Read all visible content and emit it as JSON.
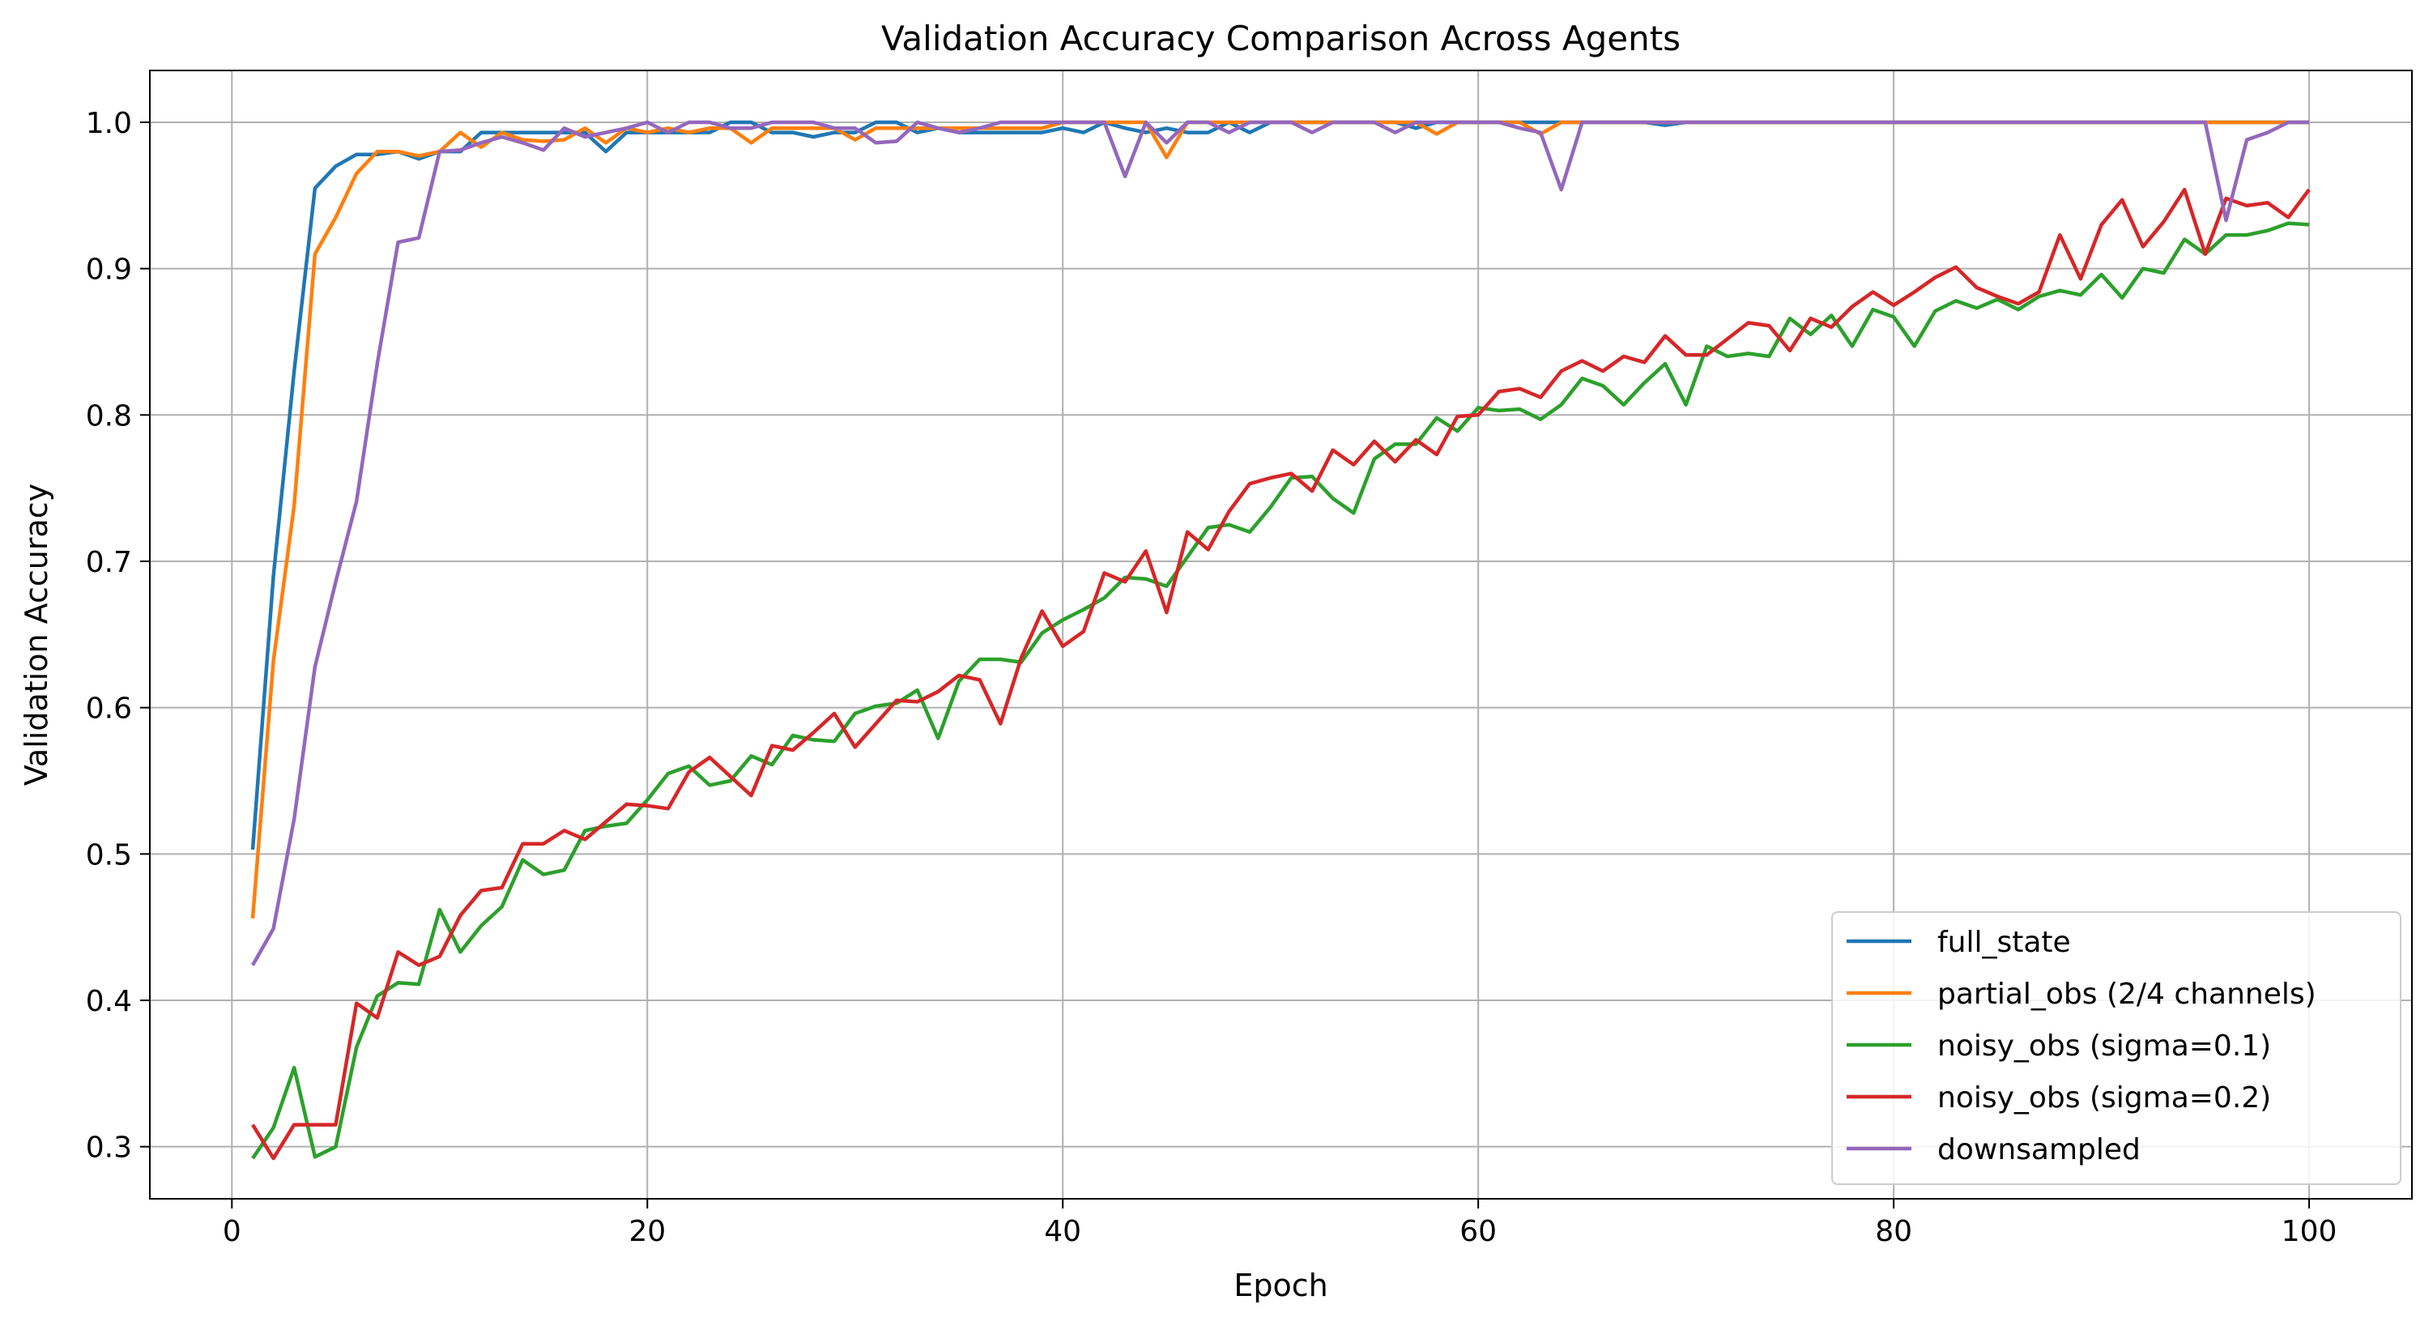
{
  "chart_data": {
    "type": "line",
    "title": "Validation Accuracy Comparison Across Agents",
    "xlabel": "Epoch",
    "ylabel": "Validation Accuracy",
    "xlim": [
      -3.95,
      104.95
    ],
    "ylim": [
      0.2644,
      1.0354
    ],
    "xticks": [
      0,
      20,
      40,
      60,
      80,
      100
    ],
    "xtick_labels": [
      "0",
      "20",
      "40",
      "60",
      "80",
      "100"
    ],
    "yticks": [
      0.3,
      0.4,
      0.5,
      0.6,
      0.7,
      0.8,
      0.9,
      1.0
    ],
    "ytick_labels": [
      "0.3",
      "0.4",
      "0.5",
      "0.6",
      "0.7",
      "0.8",
      "0.9",
      "1.0"
    ],
    "grid": true,
    "legend_position": "lower-right",
    "x": [
      1,
      2,
      3,
      4,
      5,
      6,
      7,
      8,
      9,
      10,
      11,
      12,
      13,
      14,
      15,
      16,
      17,
      18,
      19,
      20,
      21,
      22,
      23,
      24,
      25,
      26,
      27,
      28,
      29,
      30,
      31,
      32,
      33,
      34,
      35,
      36,
      37,
      38,
      39,
      40,
      41,
      42,
      43,
      44,
      45,
      46,
      47,
      48,
      49,
      50,
      51,
      52,
      53,
      54,
      55,
      56,
      57,
      58,
      59,
      60,
      61,
      62,
      63,
      64,
      65,
      66,
      67,
      68,
      69,
      70,
      71,
      72,
      73,
      74,
      75,
      76,
      77,
      78,
      79,
      80,
      81,
      82,
      83,
      84,
      85,
      86,
      87,
      88,
      89,
      90,
      91,
      92,
      93,
      94,
      95,
      96,
      97,
      98,
      99,
      100
    ],
    "series": [
      {
        "name": "full_state",
        "color": "#1f77b4",
        "values": [
          0.503,
          0.69,
          0.83,
          0.955,
          0.97,
          0.978,
          0.978,
          0.98,
          0.975,
          0.98,
          0.98,
          0.993,
          0.993,
          0.993,
          0.993,
          0.993,
          0.993,
          0.98,
          0.993,
          0.993,
          0.993,
          0.993,
          0.993,
          1.0,
          1.0,
          0.993,
          0.993,
          0.99,
          0.993,
          0.993,
          1.0,
          1.0,
          0.993,
          0.996,
          0.993,
          0.993,
          0.993,
          0.993,
          0.993,
          0.996,
          0.993,
          1.0,
          0.996,
          0.993,
          0.996,
          0.993,
          0.993,
          1.0,
          0.993,
          1.0,
          1.0,
          1.0,
          1.0,
          1.0,
          1.0,
          1.0,
          0.996,
          1.0,
          1.0,
          1.0,
          1.0,
          1.0,
          1.0,
          1.0,
          1.0,
          1.0,
          1.0,
          1.0,
          0.998,
          1.0,
          1.0,
          1.0,
          1.0,
          1.0,
          1.0,
          1.0,
          1.0,
          1.0,
          1.0,
          1.0,
          1.0,
          1.0,
          1.0,
          1.0,
          1.0,
          1.0,
          1.0,
          1.0,
          1.0,
          1.0,
          1.0,
          1.0,
          1.0,
          1.0,
          1.0,
          1.0,
          1.0,
          1.0,
          1.0,
          1.0
        ]
      },
      {
        "name": "partial_obs (2/4 channels)",
        "color": "#ff7f0e",
        "values": [
          0.456,
          0.632,
          0.738,
          0.91,
          0.935,
          0.965,
          0.98,
          0.98,
          0.977,
          0.98,
          0.993,
          0.983,
          0.993,
          0.988,
          0.987,
          0.988,
          0.996,
          0.986,
          0.996,
          0.993,
          0.996,
          0.993,
          0.996,
          0.996,
          0.986,
          0.996,
          0.996,
          0.996,
          0.996,
          0.988,
          0.996,
          0.996,
          0.996,
          0.996,
          0.996,
          0.996,
          0.996,
          0.996,
          0.996,
          1.0,
          1.0,
          1.0,
          1.0,
          1.0,
          0.976,
          1.0,
          1.0,
          1.0,
          1.0,
          1.0,
          1.0,
          1.0,
          1.0,
          1.0,
          1.0,
          1.0,
          1.0,
          0.992,
          1.0,
          1.0,
          1.0,
          1.0,
          0.992,
          1.0,
          1.0,
          1.0,
          1.0,
          1.0,
          1.0,
          1.0,
          1.0,
          1.0,
          1.0,
          1.0,
          1.0,
          1.0,
          1.0,
          1.0,
          1.0,
          1.0,
          1.0,
          1.0,
          1.0,
          1.0,
          1.0,
          1.0,
          1.0,
          1.0,
          1.0,
          1.0,
          1.0,
          1.0,
          1.0,
          1.0,
          1.0,
          1.0,
          1.0,
          1.0,
          1.0,
          1.0
        ]
      },
      {
        "name": "noisy_obs (sigma=0.1)",
        "color": "#2ca02c",
        "values": [
          0.292,
          0.313,
          0.354,
          0.293,
          0.3,
          0.368,
          0.403,
          0.412,
          0.411,
          0.462,
          0.433,
          0.451,
          0.464,
          0.496,
          0.486,
          0.489,
          0.516,
          0.519,
          0.521,
          0.537,
          0.555,
          0.56,
          0.547,
          0.55,
          0.567,
          0.561,
          0.581,
          0.578,
          0.577,
          0.596,
          0.601,
          0.603,
          0.612,
          0.579,
          0.618,
          0.633,
          0.633,
          0.631,
          0.651,
          0.66,
          0.667,
          0.675,
          0.689,
          0.688,
          0.683,
          0.703,
          0.723,
          0.725,
          0.72,
          0.737,
          0.757,
          0.758,
          0.743,
          0.733,
          0.77,
          0.78,
          0.78,
          0.798,
          0.789,
          0.805,
          0.803,
          0.804,
          0.797,
          0.807,
          0.825,
          0.82,
          0.807,
          0.822,
          0.835,
          0.807,
          0.847,
          0.84,
          0.842,
          0.84,
          0.866,
          0.855,
          0.868,
          0.847,
          0.872,
          0.867,
          0.847,
          0.871,
          0.878,
          0.873,
          0.879,
          0.872,
          0.881,
          0.885,
          0.882,
          0.896,
          0.88,
          0.9,
          0.897,
          0.92,
          0.91,
          0.923,
          0.923,
          0.926,
          0.931,
          0.93
        ]
      },
      {
        "name": "noisy_obs (sigma=0.2)",
        "color": "#d62728",
        "values": [
          0.315,
          0.292,
          0.315,
          0.315,
          0.315,
          0.398,
          0.388,
          0.433,
          0.424,
          0.43,
          0.458,
          0.475,
          0.477,
          0.507,
          0.507,
          0.516,
          0.51,
          0.522,
          0.534,
          0.533,
          0.531,
          0.556,
          0.566,
          0.553,
          0.54,
          0.574,
          0.571,
          0.583,
          0.596,
          0.573,
          0.589,
          0.605,
          0.604,
          0.611,
          0.622,
          0.619,
          0.589,
          0.634,
          0.666,
          0.642,
          0.652,
          0.692,
          0.686,
          0.707,
          0.665,
          0.72,
          0.708,
          0.734,
          0.753,
          0.757,
          0.76,
          0.748,
          0.776,
          0.766,
          0.782,
          0.768,
          0.783,
          0.773,
          0.799,
          0.8,
          0.816,
          0.818,
          0.812,
          0.83,
          0.837,
          0.83,
          0.84,
          0.836,
          0.854,
          0.841,
          0.841,
          0.852,
          0.863,
          0.861,
          0.844,
          0.866,
          0.86,
          0.874,
          0.884,
          0.875,
          0.884,
          0.894,
          0.901,
          0.887,
          0.881,
          0.876,
          0.884,
          0.923,
          0.893,
          0.93,
          0.947,
          0.915,
          0.932,
          0.954,
          0.91,
          0.948,
          0.943,
          0.945,
          0.935,
          0.954
        ]
      },
      {
        "name": "downsampled",
        "color": "#9467bd",
        "values": [
          0.424,
          0.449,
          0.524,
          0.628,
          0.686,
          0.741,
          0.835,
          0.918,
          0.921,
          0.98,
          0.981,
          0.986,
          0.99,
          0.986,
          0.981,
          0.996,
          0.99,
          0.993,
          0.996,
          1.0,
          0.993,
          1.0,
          1.0,
          0.996,
          0.996,
          1.0,
          1.0,
          1.0,
          0.996,
          0.996,
          0.986,
          0.987,
          1.0,
          0.996,
          0.993,
          0.996,
          1.0,
          1.0,
          1.0,
          1.0,
          1.0,
          1.0,
          0.963,
          1.0,
          0.986,
          1.0,
          1.0,
          0.993,
          1.0,
          1.0,
          1.0,
          0.993,
          1.0,
          1.0,
          1.0,
          0.993,
          1.0,
          1.0,
          1.0,
          1.0,
          1.0,
          0.996,
          0.993,
          0.954,
          1.0,
          1.0,
          1.0,
          1.0,
          1.0,
          1.0,
          1.0,
          1.0,
          1.0,
          1.0,
          1.0,
          1.0,
          1.0,
          1.0,
          1.0,
          1.0,
          1.0,
          1.0,
          1.0,
          1.0,
          1.0,
          1.0,
          1.0,
          1.0,
          1.0,
          1.0,
          1.0,
          1.0,
          1.0,
          1.0,
          1.0,
          0.933,
          0.988,
          0.993,
          1.0,
          1.0
        ]
      }
    ]
  }
}
